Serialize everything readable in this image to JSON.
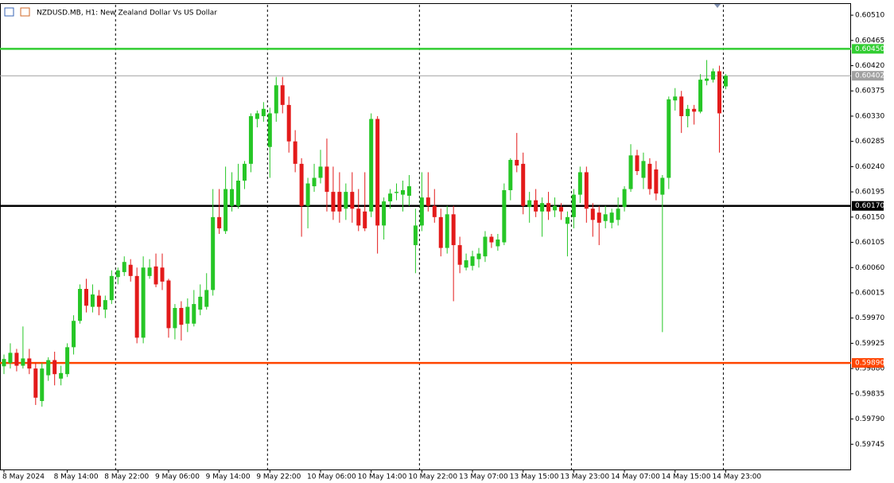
{
  "chart_data": {
    "type": "candlestick",
    "title": "NZDUSD.MB, H1:  New Zealand Dollar Vs US Dollar",
    "ylim": [
      0.597,
      0.6053
    ],
    "yticks": [
      {
        "value": 0.6051,
        "label": "0.60510"
      },
      0.60465,
      {
        "value": 0.6042,
        "label": "0.60420"
      },
      0.60375,
      {
        "value": 0.6033,
        "label": "0.60330"
      },
      0.60285,
      {
        "value": 0.6024,
        "label": "0.60240"
      },
      0.60195,
      {
        "value": 0.6015,
        "label": "0.60150"
      },
      0.60105,
      {
        "value": 0.6006,
        "label": "0.60060"
      },
      0.60015,
      {
        "value": 0.5997,
        "label": "0.59970"
      },
      0.59925,
      {
        "value": 0.5988,
        "label": "0.59880"
      },
      0.59835,
      {
        "value": 0.5979,
        "label": "0.59790"
      },
      0.59745
    ],
    "xticks": [
      {
        "value": 0,
        "label": "8 May 2024"
      },
      {
        "value": 10,
        "label": "8 May 14:00"
      },
      {
        "value": 18,
        "label": "8 May 22:00"
      },
      {
        "value": 26,
        "label": "9 May 06:00"
      },
      {
        "value": 34,
        "label": "9 May 14:00"
      },
      {
        "value": 42,
        "label": "9 May 22:00"
      },
      {
        "value": 50,
        "label": "10 May 06:00"
      },
      {
        "value": 58,
        "label": "10 May 14:00"
      },
      {
        "value": 66,
        "label": "10 May 22:00"
      },
      {
        "value": 74,
        "label": "13 May 07:00"
      },
      {
        "value": 82,
        "label": "13 May 15:00"
      },
      {
        "value": 90,
        "label": "13 May 23:00"
      },
      {
        "value": 98,
        "label": "14 May 07:00"
      },
      {
        "value": 106,
        "label": "14 May 15:00"
      },
      {
        "value": 114,
        "label": "14 May 23:00"
      }
    ],
    "levels": [
      {
        "value": 0.6045,
        "label": "0.60450",
        "color": "#32cd32"
      },
      {
        "value": 0.60402,
        "label": "0.60402",
        "color": "#a0a0a0"
      },
      {
        "value": 0.6017,
        "label": "0.60170",
        "color": "#000000"
      },
      {
        "value": 0.5989,
        "label": "0.59890",
        "color": "#ff4500"
      }
    ],
    "up_color": "#26c626",
    "down_color": "#e31a1a",
    "open": [
      0.59884,
      0.5989,
      0.59908,
      0.59885,
      0.59898,
      0.5988,
      0.59822,
      0.59868,
      0.59895,
      0.59862,
      0.5987,
      0.59918,
      0.59965,
      0.60022,
      0.5999,
      0.6001,
      0.59985,
      0.60002,
      0.60043,
      0.60052,
      0.60065,
      0.60045,
      0.59935,
      0.60045,
      0.60062,
      0.6006,
      0.60037,
      0.59952,
      0.59988,
      0.5996,
      0.5996,
      0.59985,
      0.5999,
      0.6002,
      0.6015,
      0.60125,
      0.6017,
      0.6017,
      0.60215,
      0.60245,
      0.60325,
      0.6033,
      0.60275,
      0.60335,
      0.60385,
      0.6035,
      0.60285,
      0.60245,
      0.6017,
      0.60205,
      0.6022,
      0.6024,
      0.60195,
      0.60195,
      0.60165,
      0.60195,
      0.60165,
      0.6016,
      0.6016,
      0.60325,
      0.60135,
      0.60178,
      0.60193,
      0.6019,
      0.60188,
      0.601,
      0.60135,
      0.60185,
      0.6017,
      0.6015,
      0.60095,
      0.60155,
      0.601,
      0.6006,
      0.60063,
      0.60075,
      0.6008,
      0.60115,
      0.60098,
      0.60105,
      0.60198,
      0.60252,
      0.60245,
      0.60168,
      0.6018,
      0.6016,
      0.60175,
      0.60162,
      0.60168,
      0.60138,
      0.6015,
      0.6019,
      0.6023,
      0.60165,
      0.60158,
      0.60143,
      0.6014,
      0.60145,
      0.60168,
      0.602,
      0.6026,
      0.6022,
      0.60245,
      0.60235,
      0.6019,
      0.6022,
      0.60358,
      0.60365,
      0.6033,
      0.60343,
      0.60338,
      0.60393,
      0.60395,
      0.6041,
      0.60383
    ],
    "high": [
      0.59905,
      0.59925,
      0.59915,
      0.59955,
      0.59915,
      0.5989,
      0.5989,
      0.599,
      0.5991,
      0.59885,
      0.59925,
      0.59975,
      0.6003,
      0.6004,
      0.6003,
      0.6002,
      0.6001,
      0.60055,
      0.6006,
      0.6008,
      0.60075,
      0.6006,
      0.6008,
      0.60075,
      0.60085,
      0.60085,
      0.6004,
      0.59995,
      0.6,
      0.60005,
      0.6002,
      0.6003,
      0.6005,
      0.602,
      0.602,
      0.6024,
      0.6023,
      0.60245,
      0.6025,
      0.60335,
      0.6034,
      0.60355,
      0.60345,
      0.604,
      0.604,
      0.60365,
      0.60305,
      0.60255,
      0.6022,
      0.60245,
      0.6027,
      0.6029,
      0.6024,
      0.6023,
      0.6021,
      0.6023,
      0.602,
      0.6023,
      0.60335,
      0.6033,
      0.60185,
      0.602,
      0.6021,
      0.60215,
      0.60225,
      0.60165,
      0.6023,
      0.6023,
      0.602,
      0.60165,
      0.6017,
      0.6017,
      0.60115,
      0.60085,
      0.6009,
      0.60095,
      0.60125,
      0.6012,
      0.6012,
      0.6021,
      0.60255,
      0.603,
      0.60265,
      0.60195,
      0.602,
      0.60185,
      0.60195,
      0.60185,
      0.60175,
      0.6016,
      0.602,
      0.6024,
      0.6024,
      0.60175,
      0.6017,
      0.6017,
      0.60165,
      0.60185,
      0.60205,
      0.6028,
      0.6027,
      0.60265,
      0.60255,
      0.6025,
      0.60225,
      0.60365,
      0.6038,
      0.60375,
      0.6035,
      0.6035,
      0.60405,
      0.6043,
      0.60415,
      0.6042,
      0.60405
    ],
    "low": [
      0.5987,
      0.5988,
      0.59875,
      0.5988,
      0.5987,
      0.59815,
      0.59812,
      0.59858,
      0.5985,
      0.5985,
      0.59865,
      0.59905,
      0.5996,
      0.5998,
      0.5998,
      0.59975,
      0.5997,
      0.59995,
      0.6003,
      0.60045,
      0.60035,
      0.59925,
      0.59925,
      0.6004,
      0.60025,
      0.6002,
      0.59935,
      0.59932,
      0.5993,
      0.59945,
      0.59955,
      0.59975,
      0.59985,
      0.6001,
      0.6012,
      0.6012,
      0.6016,
      0.60165,
      0.602,
      0.6023,
      0.6031,
      0.6032,
      0.6022,
      0.6032,
      0.60335,
      0.60265,
      0.6023,
      0.60115,
      0.6013,
      0.60195,
      0.6021,
      0.6016,
      0.60145,
      0.6014,
      0.60145,
      0.6014,
      0.60125,
      0.60125,
      0.6015,
      0.60085,
      0.6011,
      0.60165,
      0.6018,
      0.6016,
      0.6017,
      0.6005,
      0.60125,
      0.6016,
      0.6014,
      0.6008,
      0.60085,
      0.6,
      0.6005,
      0.60055,
      0.60055,
      0.6006,
      0.6007,
      0.60095,
      0.6009,
      0.601,
      0.6018,
      0.6023,
      0.60155,
      0.6014,
      0.6015,
      0.60115,
      0.60145,
      0.6015,
      0.60145,
      0.6008,
      0.6013,
      0.60175,
      0.6014,
      0.60115,
      0.601,
      0.6013,
      0.6013,
      0.60135,
      0.6016,
      0.60195,
      0.60225,
      0.602,
      0.6019,
      0.6018,
      0.59945,
      0.602,
      0.6034,
      0.603,
      0.6031,
      0.60315,
      0.60335,
      0.60385,
      0.6039,
      0.60265,
      0.60378
    ],
    "close": [
      0.59897,
      0.59908,
      0.59885,
      0.59898,
      0.5988,
      0.59828,
      0.5988,
      0.59895,
      0.5987,
      0.59872,
      0.59918,
      0.59965,
      0.60022,
      0.59992,
      0.60012,
      0.5999,
      0.60002,
      0.60045,
      0.60055,
      0.6007,
      0.60045,
      0.59935,
      0.6006,
      0.6006,
      0.6003,
      0.60035,
      0.59952,
      0.59988,
      0.59958,
      0.5999,
      0.59995,
      0.60008,
      0.6002,
      0.6015,
      0.6013,
      0.602,
      0.602,
      0.60215,
      0.60245,
      0.6033,
      0.60335,
      0.60343,
      0.60335,
      0.60385,
      0.6035,
      0.60285,
      0.60245,
      0.6017,
      0.6021,
      0.6022,
      0.6024,
      0.60195,
      0.6016,
      0.6016,
      0.60195,
      0.60165,
      0.60135,
      0.6013,
      0.60325,
      0.60135,
      0.60178,
      0.60192,
      0.60195,
      0.60198,
      0.60205,
      0.60135,
      0.60185,
      0.6017,
      0.6015,
      0.60095,
      0.60155,
      0.601,
      0.60065,
      0.60073,
      0.6008,
      0.60085,
      0.60115,
      0.60105,
      0.6011,
      0.60198,
      0.60252,
      0.60242,
      0.6017,
      0.6018,
      0.6016,
      0.60175,
      0.6016,
      0.6017,
      0.6016,
      0.6015,
      0.6019,
      0.6023,
      0.60165,
      0.60145,
      0.6014,
      0.60155,
      0.60158,
      0.60165,
      0.602,
      0.6026,
      0.60232,
      0.6025,
      0.602,
      0.60192,
      0.6022,
      0.6036,
      0.60365,
      0.6033,
      0.60343,
      0.60338,
      0.60395,
      0.60397,
      0.6041,
      0.60335,
      0.60402
    ]
  }
}
